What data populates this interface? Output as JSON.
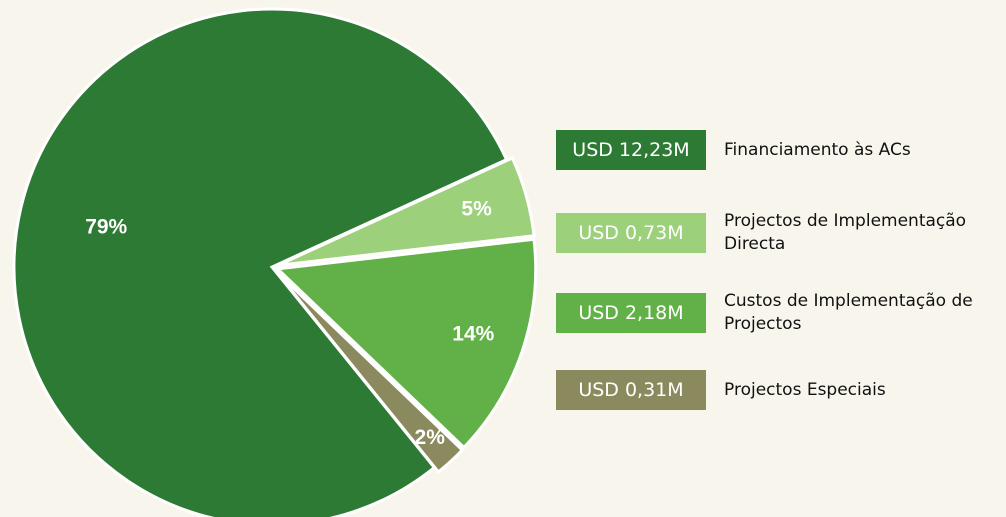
{
  "chart_data": {
    "type": "pie",
    "categories": [
      "Financiamento às ACs",
      "Projectos de Implementação Directa",
      "Custos de Implementação de Projectos",
      "Projectos Especiais"
    ],
    "values": [
      79,
      5,
      14,
      2
    ],
    "value_labels": [
      "79%",
      "5%",
      "14%",
      "2%"
    ],
    "amounts": [
      "USD 12,23M",
      "USD 0,73M",
      "USD 2,18M",
      "USD 0,31M"
    ],
    "colors": [
      "#2d7a34",
      "#9dd07a",
      "#62b148",
      "#8b8a5e"
    ]
  }
}
